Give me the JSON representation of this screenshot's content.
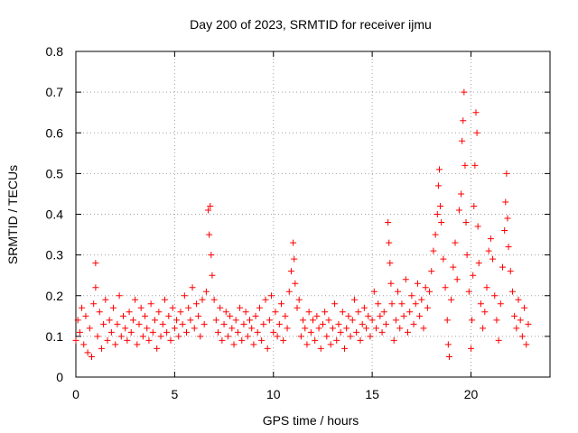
{
  "chart_data": {
    "type": "scatter",
    "title": "Day 200 of 2023, SRMTID for receiver ijmu",
    "xlabel": "GPS time / hours",
    "ylabel": "SRMTID / TECUs",
    "xlim": [
      0,
      24
    ],
    "ylim": [
      0,
      0.8
    ],
    "x_ticks": [
      0,
      5,
      10,
      15,
      20
    ],
    "x_tick_labels": [
      "0",
      "5",
      "10",
      "15",
      "20"
    ],
    "y_ticks": [
      0,
      0.1,
      0.2,
      0.3,
      0.4,
      0.5,
      0.6,
      0.7,
      0.8
    ],
    "y_tick_labels": [
      "0",
      "0.1",
      "0.2",
      "0.3",
      "0.4",
      "0.5",
      "0.6",
      "0.7",
      "0.8"
    ],
    "grid": true,
    "marker": "+",
    "marker_color": "#ff0000",
    "series": [
      {
        "name": "SRMTID",
        "points": [
          [
            0.0,
            0.09
          ],
          [
            0.1,
            0.14
          ],
          [
            0.2,
            0.11
          ],
          [
            0.3,
            0.17
          ],
          [
            0.4,
            0.08
          ],
          [
            0.5,
            0.15
          ],
          [
            0.6,
            0.06
          ],
          [
            0.7,
            0.12
          ],
          [
            0.8,
            0.05
          ],
          [
            0.9,
            0.18
          ],
          [
            1.0,
            0.28
          ],
          [
            1.0,
            0.22
          ],
          [
            1.1,
            0.1
          ],
          [
            1.2,
            0.16
          ],
          [
            1.3,
            0.07
          ],
          [
            1.4,
            0.13
          ],
          [
            1.5,
            0.19
          ],
          [
            1.6,
            0.09
          ],
          [
            1.7,
            0.14
          ],
          [
            1.8,
            0.11
          ],
          [
            1.9,
            0.17
          ],
          [
            2.0,
            0.08
          ],
          [
            2.1,
            0.13
          ],
          [
            2.2,
            0.2
          ],
          [
            2.3,
            0.1
          ],
          [
            2.4,
            0.15
          ],
          [
            2.5,
            0.12
          ],
          [
            2.6,
            0.09
          ],
          [
            2.7,
            0.16
          ],
          [
            2.8,
            0.11
          ],
          [
            2.9,
            0.14
          ],
          [
            3.0,
            0.19
          ],
          [
            3.1,
            0.08
          ],
          [
            3.2,
            0.13
          ],
          [
            3.3,
            0.17
          ],
          [
            3.4,
            0.1
          ],
          [
            3.5,
            0.15
          ],
          [
            3.6,
            0.12
          ],
          [
            3.7,
            0.09
          ],
          [
            3.8,
            0.18
          ],
          [
            3.9,
            0.11
          ],
          [
            4.0,
            0.14
          ],
          [
            4.1,
            0.07
          ],
          [
            4.2,
            0.16
          ],
          [
            4.3,
            0.1
          ],
          [
            4.4,
            0.13
          ],
          [
            4.5,
            0.19
          ],
          [
            4.6,
            0.11
          ],
          [
            4.7,
            0.15
          ],
          [
            4.8,
            0.09
          ],
          [
            4.9,
            0.17
          ],
          [
            5.0,
            0.12
          ],
          [
            5.1,
            0.14
          ],
          [
            5.2,
            0.1
          ],
          [
            5.3,
            0.16
          ],
          [
            5.4,
            0.13
          ],
          [
            5.5,
            0.2
          ],
          [
            5.6,
            0.11
          ],
          [
            5.7,
            0.17
          ],
          [
            5.8,
            0.14
          ],
          [
            5.9,
            0.22
          ],
          [
            6.0,
            0.12
          ],
          [
            6.1,
            0.18
          ],
          [
            6.2,
            0.15
          ],
          [
            6.3,
            0.1
          ],
          [
            6.4,
            0.19
          ],
          [
            6.5,
            0.13
          ],
          [
            6.6,
            0.21
          ],
          [
            6.7,
            0.41
          ],
          [
            6.75,
            0.35
          ],
          [
            6.8,
            0.42
          ],
          [
            6.85,
            0.3
          ],
          [
            6.9,
            0.25
          ],
          [
            7.0,
            0.19
          ],
          [
            7.1,
            0.14
          ],
          [
            7.2,
            0.11
          ],
          [
            7.3,
            0.17
          ],
          [
            7.4,
            0.09
          ],
          [
            7.5,
            0.13
          ],
          [
            7.6,
            0.16
          ],
          [
            7.7,
            0.1
          ],
          [
            7.8,
            0.15
          ],
          [
            7.9,
            0.12
          ],
          [
            8.0,
            0.08
          ],
          [
            8.1,
            0.14
          ],
          [
            8.2,
            0.11
          ],
          [
            8.3,
            0.17
          ],
          [
            8.4,
            0.09
          ],
          [
            8.5,
            0.13
          ],
          [
            8.6,
            0.16
          ],
          [
            8.7,
            0.1
          ],
          [
            8.8,
            0.14
          ],
          [
            8.9,
            0.12
          ],
          [
            9.0,
            0.08
          ],
          [
            9.1,
            0.15
          ],
          [
            9.2,
            0.11
          ],
          [
            9.3,
            0.17
          ],
          [
            9.4,
            0.09
          ],
          [
            9.5,
            0.13
          ],
          [
            9.6,
            0.19
          ],
          [
            9.7,
            0.07
          ],
          [
            9.8,
            0.14
          ],
          [
            9.9,
            0.2
          ],
          [
            10.0,
            0.11
          ],
          [
            10.1,
            0.16
          ],
          [
            10.2,
            0.1
          ],
          [
            10.3,
            0.13
          ],
          [
            10.4,
            0.18
          ],
          [
            10.5,
            0.09
          ],
          [
            10.6,
            0.15
          ],
          [
            10.7,
            0.12
          ],
          [
            10.8,
            0.21
          ],
          [
            10.9,
            0.26
          ],
          [
            11.0,
            0.33
          ],
          [
            11.05,
            0.29
          ],
          [
            11.1,
            0.23
          ],
          [
            11.2,
            0.17
          ],
          [
            11.3,
            0.19
          ],
          [
            11.4,
            0.1
          ],
          [
            11.5,
            0.14
          ],
          [
            11.6,
            0.12
          ],
          [
            11.7,
            0.08
          ],
          [
            11.8,
            0.16
          ],
          [
            11.9,
            0.11
          ],
          [
            12.0,
            0.14
          ],
          [
            12.1,
            0.09
          ],
          [
            12.2,
            0.15
          ],
          [
            12.3,
            0.12
          ],
          [
            12.4,
            0.07
          ],
          [
            12.5,
            0.13
          ],
          [
            12.6,
            0.16
          ],
          [
            12.7,
            0.1
          ],
          [
            12.8,
            0.14
          ],
          [
            12.9,
            0.08
          ],
          [
            13.0,
            0.12
          ],
          [
            13.1,
            0.18
          ],
          [
            13.2,
            0.09
          ],
          [
            13.3,
            0.13
          ],
          [
            13.4,
            0.11
          ],
          [
            13.5,
            0.16
          ],
          [
            13.6,
            0.07
          ],
          [
            13.7,
            0.12
          ],
          [
            13.8,
            0.15
          ],
          [
            13.9,
            0.1
          ],
          [
            14.0,
            0.14
          ],
          [
            14.1,
            0.19
          ],
          [
            14.2,
            0.11
          ],
          [
            14.3,
            0.16
          ],
          [
            14.4,
            0.09
          ],
          [
            14.5,
            0.13
          ],
          [
            14.6,
            0.17
          ],
          [
            14.7,
            0.12
          ],
          [
            14.8,
            0.15
          ],
          [
            14.9,
            0.1
          ],
          [
            15.0,
            0.14
          ],
          [
            15.1,
            0.21
          ],
          [
            15.2,
            0.12
          ],
          [
            15.3,
            0.18
          ],
          [
            15.4,
            0.15
          ],
          [
            15.5,
            0.11
          ],
          [
            15.6,
            0.16
          ],
          [
            15.7,
            0.13
          ],
          [
            15.8,
            0.38
          ],
          [
            15.85,
            0.33
          ],
          [
            15.9,
            0.28
          ],
          [
            15.95,
            0.23
          ],
          [
            16.0,
            0.18
          ],
          [
            16.1,
            0.09
          ],
          [
            16.2,
            0.14
          ],
          [
            16.3,
            0.21
          ],
          [
            16.4,
            0.12
          ],
          [
            16.5,
            0.18
          ],
          [
            16.6,
            0.15
          ],
          [
            16.7,
            0.24
          ],
          [
            16.8,
            0.11
          ],
          [
            16.9,
            0.16
          ],
          [
            17.0,
            0.2
          ],
          [
            17.1,
            0.13
          ],
          [
            17.2,
            0.18
          ],
          [
            17.3,
            0.23
          ],
          [
            17.4,
            0.15
          ],
          [
            17.5,
            0.19
          ],
          [
            17.6,
            0.12
          ],
          [
            17.7,
            0.22
          ],
          [
            17.8,
            0.17
          ],
          [
            17.9,
            0.21
          ],
          [
            18.0,
            0.26
          ],
          [
            18.1,
            0.31
          ],
          [
            18.2,
            0.35
          ],
          [
            18.3,
            0.4
          ],
          [
            18.35,
            0.47
          ],
          [
            18.4,
            0.51
          ],
          [
            18.45,
            0.42
          ],
          [
            18.5,
            0.38
          ],
          [
            18.6,
            0.29
          ],
          [
            18.7,
            0.22
          ],
          [
            18.8,
            0.14
          ],
          [
            18.85,
            0.08
          ],
          [
            18.9,
            0.05
          ],
          [
            19.0,
            0.19
          ],
          [
            19.1,
            0.27
          ],
          [
            19.2,
            0.33
          ],
          [
            19.3,
            0.24
          ],
          [
            19.4,
            0.41
          ],
          [
            19.5,
            0.45
          ],
          [
            19.55,
            0.58
          ],
          [
            19.6,
            0.63
          ],
          [
            19.65,
            0.7
          ],
          [
            19.7,
            0.52
          ],
          [
            19.75,
            0.38
          ],
          [
            19.8,
            0.3
          ],
          [
            19.9,
            0.21
          ],
          [
            20.0,
            0.07
          ],
          [
            20.05,
            0.14
          ],
          [
            20.1,
            0.25
          ],
          [
            20.15,
            0.42
          ],
          [
            20.2,
            0.52
          ],
          [
            20.25,
            0.65
          ],
          [
            20.3,
            0.6
          ],
          [
            20.35,
            0.37
          ],
          [
            20.4,
            0.28
          ],
          [
            20.5,
            0.18
          ],
          [
            20.6,
            0.12
          ],
          [
            20.7,
            0.16
          ],
          [
            20.8,
            0.22
          ],
          [
            20.9,
            0.31
          ],
          [
            21.0,
            0.34
          ],
          [
            21.1,
            0.29
          ],
          [
            21.2,
            0.2
          ],
          [
            21.3,
            0.14
          ],
          [
            21.4,
            0.09
          ],
          [
            21.5,
            0.18
          ],
          [
            21.6,
            0.27
          ],
          [
            21.7,
            0.36
          ],
          [
            21.75,
            0.43
          ],
          [
            21.8,
            0.5
          ],
          [
            21.85,
            0.39
          ],
          [
            21.9,
            0.32
          ],
          [
            22.0,
            0.26
          ],
          [
            22.1,
            0.21
          ],
          [
            22.2,
            0.15
          ],
          [
            22.3,
            0.12
          ],
          [
            22.4,
            0.19
          ],
          [
            22.5,
            0.14
          ],
          [
            22.6,
            0.1
          ],
          [
            22.7,
            0.17
          ],
          [
            22.8,
            0.08
          ],
          [
            22.9,
            0.13
          ]
        ]
      }
    ]
  }
}
